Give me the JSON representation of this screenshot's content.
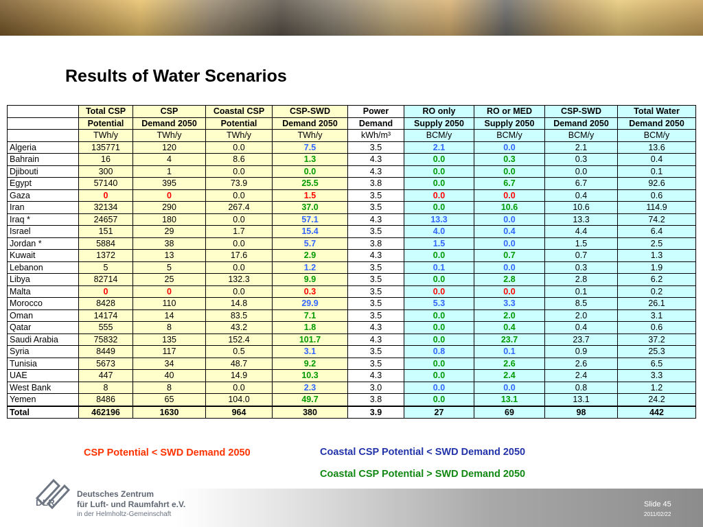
{
  "title": "Results of Water Scenarios",
  "table": {
    "header_row1": [
      "",
      "Total CSP",
      "CSP",
      "Coastal CSP",
      "CSP-SWD",
      "Power",
      "RO only",
      "RO or MED",
      "CSP-SWD",
      "Total Water"
    ],
    "header_row2": [
      "",
      "Potential",
      "Demand 2050",
      "Potential",
      "Demand 2050",
      "Demand",
      "Supply 2050",
      "Supply 2050",
      "Demand 2050",
      "Demand 2050"
    ],
    "header_units": [
      "",
      "TWh/y",
      "TWh/y",
      "TWh/y",
      "TWh/y",
      "kWh/m³",
      "BCM/y",
      "BCM/y",
      "BCM/y",
      "BCM/y"
    ],
    "rows": [
      {
        "country": "Algeria",
        "total_csp": "135771",
        "csp_demand": "120",
        "coastal_csp": "0.0",
        "csp_swd": "7.5",
        "power": "3.5",
        "ro_only": "2.1",
        "ro_med": "0.0",
        "csp_swd_demand": "2.1",
        "total_water": "13.6"
      },
      {
        "country": "Bahrain",
        "total_csp": "16",
        "csp_demand": "4",
        "coastal_csp": "8.6",
        "csp_swd": "1.3",
        "power": "4.3",
        "ro_only": "0.0",
        "ro_med": "0.3",
        "csp_swd_demand": "0.3",
        "total_water": "0.4"
      },
      {
        "country": "Djibouti",
        "total_csp": "300",
        "csp_demand": "1",
        "coastal_csp": "0.0",
        "csp_swd": "0.0",
        "power": "4.3",
        "ro_only": "0.0",
        "ro_med": "0.0",
        "csp_swd_demand": "0.0",
        "total_water": "0.1"
      },
      {
        "country": "Egypt",
        "total_csp": "57140",
        "csp_demand": "395",
        "coastal_csp": "73.9",
        "csp_swd": "25.5",
        "power": "3.8",
        "ro_only": "0.0",
        "ro_med": "6.7",
        "csp_swd_demand": "6.7",
        "total_water": "92.6"
      },
      {
        "country": "Gaza",
        "total_csp": "0",
        "csp_demand": "0",
        "coastal_csp": "0.0",
        "csp_swd": "1.5",
        "power": "3.5",
        "ro_only": "0.0",
        "ro_med": "0.0",
        "csp_swd_demand": "0.4",
        "total_water": "0.6"
      },
      {
        "country": "Iran",
        "total_csp": "32134",
        "csp_demand": "290",
        "coastal_csp": "267.4",
        "csp_swd": "37.0",
        "power": "3.5",
        "ro_only": "0.0",
        "ro_med": "10.6",
        "csp_swd_demand": "10.6",
        "total_water": "114.9"
      },
      {
        "country": "Iraq *",
        "total_csp": "24657",
        "csp_demand": "180",
        "coastal_csp": "0.0",
        "csp_swd": "57.1",
        "power": "4.3",
        "ro_only": "13.3",
        "ro_med": "0.0",
        "csp_swd_demand": "13.3",
        "total_water": "74.2"
      },
      {
        "country": "Israel",
        "total_csp": "151",
        "csp_demand": "29",
        "coastal_csp": "1.7",
        "csp_swd": "15.4",
        "power": "3.5",
        "ro_only": "4.0",
        "ro_med": "0.4",
        "csp_swd_demand": "4.4",
        "total_water": "6.4"
      },
      {
        "country": "Jordan *",
        "total_csp": "5884",
        "csp_demand": "38",
        "coastal_csp": "0.0",
        "csp_swd": "5.7",
        "power": "3.8",
        "ro_only": "1.5",
        "ro_med": "0.0",
        "csp_swd_demand": "1.5",
        "total_water": "2.5"
      },
      {
        "country": "Kuwait",
        "total_csp": "1372",
        "csp_demand": "13",
        "coastal_csp": "17.6",
        "csp_swd": "2.9",
        "power": "4.3",
        "ro_only": "0.0",
        "ro_med": "0.7",
        "csp_swd_demand": "0.7",
        "total_water": "1.3"
      },
      {
        "country": "Lebanon",
        "total_csp": "5",
        "csp_demand": "5",
        "coastal_csp": "0.0",
        "csp_swd": "1.2",
        "power": "3.5",
        "ro_only": "0.1",
        "ro_med": "0.0",
        "csp_swd_demand": "0.3",
        "total_water": "1.9"
      },
      {
        "country": "Libya",
        "total_csp": "82714",
        "csp_demand": "25",
        "coastal_csp": "132.3",
        "csp_swd": "9.9",
        "power": "3.5",
        "ro_only": "0.0",
        "ro_med": "2.8",
        "csp_swd_demand": "2.8",
        "total_water": "6.2"
      },
      {
        "country": "Malta",
        "total_csp": "0",
        "csp_demand": "0",
        "coastal_csp": "0.0",
        "csp_swd": "0.3",
        "power": "3.5",
        "ro_only": "0.0",
        "ro_med": "0.0",
        "csp_swd_demand": "0.1",
        "total_water": "0.2"
      },
      {
        "country": "Morocco",
        "total_csp": "8428",
        "csp_demand": "110",
        "coastal_csp": "14.8",
        "csp_swd": "29.9",
        "power": "3.5",
        "ro_only": "5.3",
        "ro_med": "3.3",
        "csp_swd_demand": "8.5",
        "total_water": "26.1"
      },
      {
        "country": "Oman",
        "total_csp": "14174",
        "csp_demand": "14",
        "coastal_csp": "83.5",
        "csp_swd": "7.1",
        "power": "3.5",
        "ro_only": "0.0",
        "ro_med": "2.0",
        "csp_swd_demand": "2.0",
        "total_water": "3.1"
      },
      {
        "country": "Qatar",
        "total_csp": "555",
        "csp_demand": "8",
        "coastal_csp": "43.2",
        "csp_swd": "1.8",
        "power": "4.3",
        "ro_only": "0.0",
        "ro_med": "0.4",
        "csp_swd_demand": "0.4",
        "total_water": "0.6"
      },
      {
        "country": "Saudi Arabia",
        "total_csp": "75832",
        "csp_demand": "135",
        "coastal_csp": "152.4",
        "csp_swd": "101.7",
        "power": "4.3",
        "ro_only": "0.0",
        "ro_med": "23.7",
        "csp_swd_demand": "23.7",
        "total_water": "37.2"
      },
      {
        "country": "Syria",
        "total_csp": "8449",
        "csp_demand": "117",
        "coastal_csp": "0.5",
        "csp_swd": "3.1",
        "power": "3.5",
        "ro_only": "0.8",
        "ro_med": "0.1",
        "csp_swd_demand": "0.9",
        "total_water": "25.3"
      },
      {
        "country": "Tunisia",
        "total_csp": "5673",
        "csp_demand": "34",
        "coastal_csp": "48.7",
        "csp_swd": "9.2",
        "power": "3.5",
        "ro_only": "0.0",
        "ro_med": "2.6",
        "csp_swd_demand": "2.6",
        "total_water": "6.5"
      },
      {
        "country": "UAE",
        "total_csp": "447",
        "csp_demand": "40",
        "coastal_csp": "14.9",
        "csp_swd": "10.3",
        "power": "4.3",
        "ro_only": "0.0",
        "ro_med": "2.4",
        "csp_swd_demand": "2.4",
        "total_water": "3.3"
      },
      {
        "country": "West Bank",
        "total_csp": "8",
        "csp_demand": "8",
        "coastal_csp": "0.0",
        "csp_swd": "2.3",
        "power": "3.0",
        "ro_only": "0.0",
        "ro_med": "0.0",
        "csp_swd_demand": "0.8",
        "total_water": "1.2"
      },
      {
        "country": "Yemen",
        "total_csp": "8486",
        "csp_demand": "65",
        "coastal_csp": "104.0",
        "csp_swd": "49.7",
        "power": "3.8",
        "ro_only": "0.0",
        "ro_med": "13.1",
        "csp_swd_demand": "13.1",
        "total_water": "24.2"
      }
    ],
    "total": {
      "label": "Total",
      "total_csp": "462196",
      "csp_demand": "1630",
      "coastal_csp": "964",
      "csp_swd": "380",
      "power": "3.9",
      "ro_only": "27",
      "ro_med": "69",
      "csp_swd_demand": "98",
      "total_water": "442"
    }
  },
  "legend": {
    "red_note": "CSP Potential < SWD Demand 2050",
    "blue_note": "Coastal CSP Potential < SWD Demand 2050",
    "green_note": "Coastal CSP Potential > SWD Demand 2050"
  },
  "colors": {
    "red": "#ff0000",
    "blue": "#3366ff",
    "green": "#009900",
    "yellow_fill": "#ffffcc",
    "cyan_fill": "#ccffff"
  },
  "footer": {
    "logo_text": "DLR",
    "org_line1": "Deutsches Zentrum",
    "org_line2": "für Luft- und Raumfahrt e.V.",
    "org_line3": "in der Helmholtz-Gemeinschaft",
    "slide_label": "Slide 45",
    "date": "2011/02/22"
  }
}
